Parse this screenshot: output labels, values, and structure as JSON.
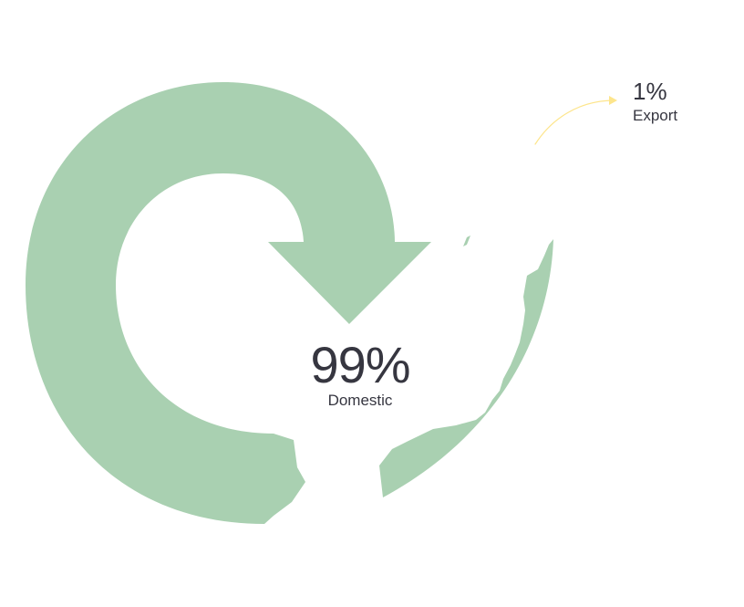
{
  "domestic": {
    "value": "99%",
    "label": "Domestic"
  },
  "export": {
    "value": "1%",
    "label": "Export"
  },
  "colors": {
    "flow_arrow": "#a9d0b1",
    "export_arrow": "#fde58c",
    "text": "#363640"
  }
}
